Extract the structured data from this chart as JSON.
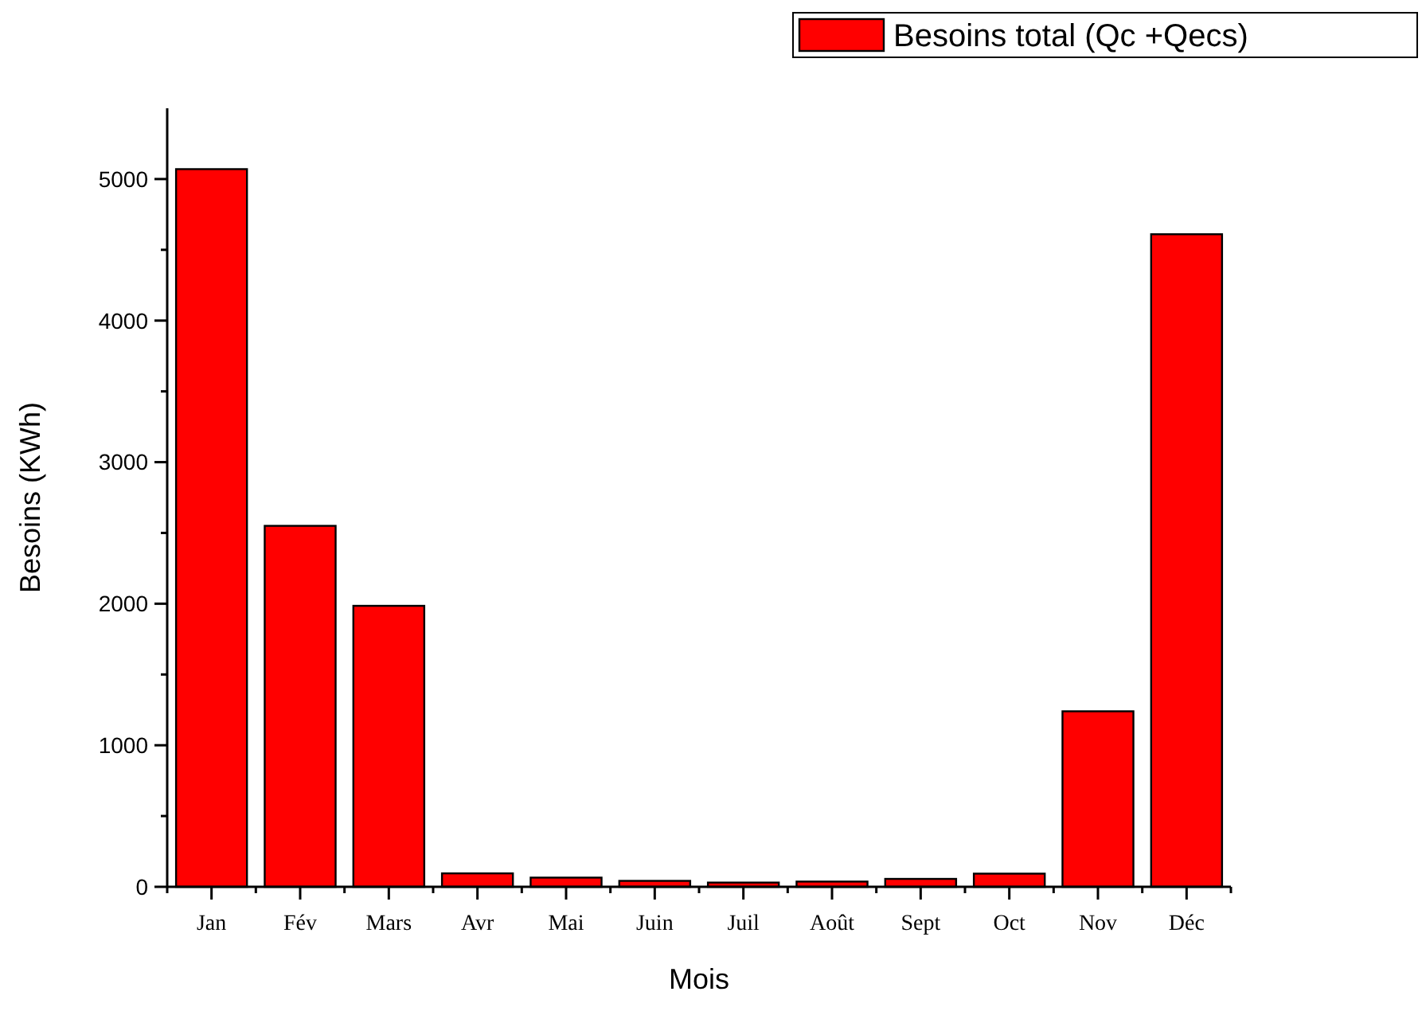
{
  "chart_data": {
    "type": "bar",
    "xlabel": "Mois",
    "ylabel": "Besoins (KWh)",
    "categories": [
      "Jan",
      "Fév",
      "Mars",
      "Avr",
      "Mai",
      "Juin",
      "Juil",
      "Août",
      "Sept",
      "Oct",
      "Nov",
      "Déc"
    ],
    "series": [
      {
        "name": "Besoins total (Qc +Qecs)",
        "color": "#ff0000",
        "values": [
          5070,
          2550,
          1985,
          95,
          65,
          42,
          30,
          37,
          56,
          93,
          1240,
          4610
        ]
      }
    ],
    "ylim": [
      0,
      5500
    ],
    "yticks": [
      0,
      {
        "value": 500,
        "label": null
      },
      1000,
      {
        "value": 1500,
        "label": null
      },
      2000,
      {
        "value": 2500,
        "label": null
      },
      3000,
      {
        "value": 3500,
        "label": null
      },
      4000,
      {
        "value": 4500,
        "label": null
      },
      5000
    ],
    "legend": "top right",
    "grid": false
  }
}
